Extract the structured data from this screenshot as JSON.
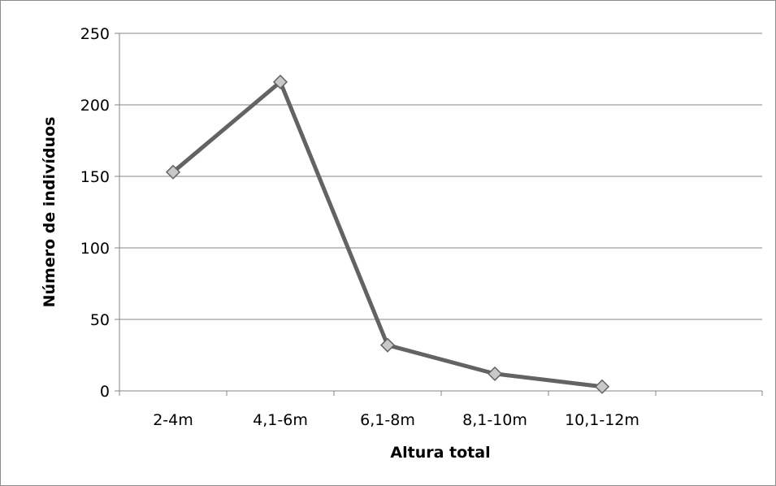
{
  "chart_data": {
    "type": "line",
    "title": "",
    "xlabel": "Altura total",
    "ylabel": "Número de indivíduos",
    "categories": [
      "2-4m",
      "4,1-6m",
      "6,1-8m",
      "8,1-10m",
      "10,1-12m"
    ],
    "series": [
      {
        "values": [
          153,
          216,
          32,
          12,
          3
        ]
      }
    ],
    "ylim": [
      0,
      250
    ],
    "yticks": [
      "0",
      "50",
      "100",
      "150",
      "200",
      "250"
    ],
    "grid": true,
    "legend": "none",
    "colors": {
      "line": "#636363",
      "marker_fill": "#c8c8c8",
      "marker_stroke": "#636363",
      "grid": "#868686",
      "axis": "#868686"
    }
  }
}
